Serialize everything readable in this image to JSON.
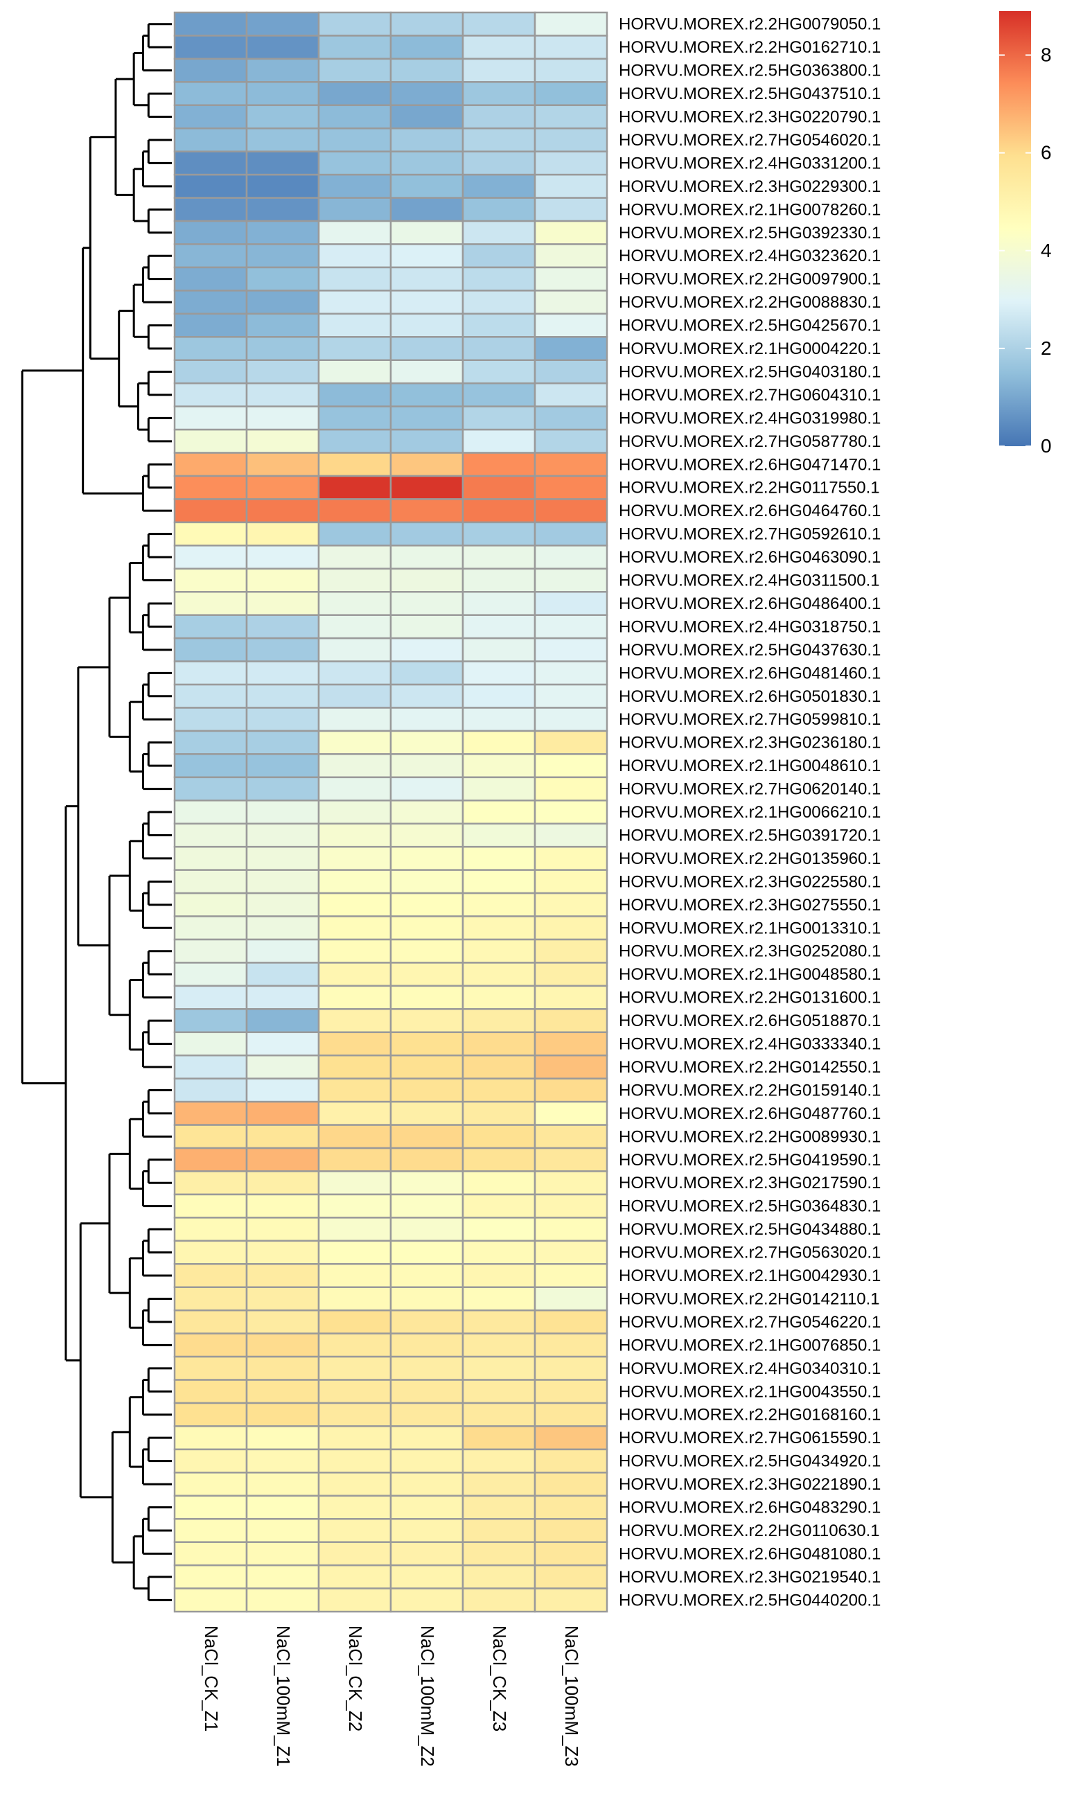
{
  "chart_data": {
    "type": "heatmap",
    "title": "",
    "xlabel": "",
    "ylabel": "",
    "columns": [
      "NaCl_CK_Z1",
      "NaCl_100mM_Z1",
      "NaCl_CK_Z2",
      "NaCl_100mM_Z2",
      "NaCl_CK_Z3",
      "NaCl_100mM_Z3"
    ],
    "rows": [
      "HORVU.MOREX.r2.2HG0079050.1",
      "HORVU.MOREX.r2.2HG0162710.1",
      "HORVU.MOREX.r2.5HG0363800.1",
      "HORVU.MOREX.r2.5HG0437510.1",
      "HORVU.MOREX.r2.3HG0220790.1",
      "HORVU.MOREX.r2.7HG0546020.1",
      "HORVU.MOREX.r2.4HG0331200.1",
      "HORVU.MOREX.r2.3HG0229300.1",
      "HORVU.MOREX.r2.1HG0078260.1",
      "HORVU.MOREX.r2.5HG0392330.1",
      "HORVU.MOREX.r2.4HG0323620.1",
      "HORVU.MOREX.r2.2HG0097900.1",
      "HORVU.MOREX.r2.2HG0088830.1",
      "HORVU.MOREX.r2.5HG0425670.1",
      "HORVU.MOREX.r2.1HG0004220.1",
      "HORVU.MOREX.r2.5HG0403180.1",
      "HORVU.MOREX.r2.7HG0604310.1",
      "HORVU.MOREX.r2.4HG0319980.1",
      "HORVU.MOREX.r2.7HG0587780.1",
      "HORVU.MOREX.r2.6HG0471470.1",
      "HORVU.MOREX.r2.2HG0117550.1",
      "HORVU.MOREX.r2.6HG0464760.1",
      "HORVU.MOREX.r2.7HG0592610.1",
      "HORVU.MOREX.r2.6HG0463090.1",
      "HORVU.MOREX.r2.4HG0311500.1",
      "HORVU.MOREX.r2.6HG0486400.1",
      "HORVU.MOREX.r2.4HG0318750.1",
      "HORVU.MOREX.r2.5HG0437630.1",
      "HORVU.MOREX.r2.6HG0481460.1",
      "HORVU.MOREX.r2.6HG0501830.1",
      "HORVU.MOREX.r2.7HG0599810.1",
      "HORVU.MOREX.r2.3HG0236180.1",
      "HORVU.MOREX.r2.1HG0048610.1",
      "HORVU.MOREX.r2.7HG0620140.1",
      "HORVU.MOREX.r2.1HG0066210.1",
      "HORVU.MOREX.r2.5HG0391720.1",
      "HORVU.MOREX.r2.2HG0135960.1",
      "HORVU.MOREX.r2.3HG0225580.1",
      "HORVU.MOREX.r2.3HG0275550.1",
      "HORVU.MOREX.r2.1HG0013310.1",
      "HORVU.MOREX.r2.3HG0252080.1",
      "HORVU.MOREX.r2.1HG0048580.1",
      "HORVU.MOREX.r2.2HG0131600.1",
      "HORVU.MOREX.r2.6HG0518870.1",
      "HORVU.MOREX.r2.4HG0333340.1",
      "HORVU.MOREX.r2.2HG0142550.1",
      "HORVU.MOREX.r2.2HG0159140.1",
      "HORVU.MOREX.r2.6HG0487760.1",
      "HORVU.MOREX.r2.2HG0089930.1",
      "HORVU.MOREX.r2.5HG0419590.1",
      "HORVU.MOREX.r2.3HG0217590.1",
      "HORVU.MOREX.r2.5HG0364830.1",
      "HORVU.MOREX.r2.5HG0434880.1",
      "HORVU.MOREX.r2.7HG0563020.1",
      "HORVU.MOREX.r2.1HG0042930.1",
      "HORVU.MOREX.r2.2HG0142110.1",
      "HORVU.MOREX.r2.7HG0546220.1",
      "HORVU.MOREX.r2.1HG0076850.1",
      "HORVU.MOREX.r2.4HG0340310.1",
      "HORVU.MOREX.r2.1HG0043550.1",
      "HORVU.MOREX.r2.2HG0168160.1",
      "HORVU.MOREX.r2.7HG0615590.1",
      "HORVU.MOREX.r2.5HG0434920.1",
      "HORVU.MOREX.r2.3HG0221890.1",
      "HORVU.MOREX.r2.6HG0483290.1",
      "HORVU.MOREX.r2.2HG0110630.1",
      "HORVU.MOREX.r2.6HG0481080.1",
      "HORVU.MOREX.r2.3HG0219540.1",
      "HORVU.MOREX.r2.5HG0440200.1"
    ],
    "values": [
      [
        0.8,
        0.9,
        2.0,
        2.0,
        2.2,
        3.2
      ],
      [
        0.6,
        0.6,
        1.7,
        1.4,
        2.6,
        2.6
      ],
      [
        1.0,
        1.3,
        1.9,
        1.9,
        2.6,
        2.5
      ],
      [
        1.4,
        1.4,
        1.0,
        1.1,
        1.7,
        1.5
      ],
      [
        1.2,
        1.6,
        1.4,
        1.0,
        2.0,
        2.1
      ],
      [
        1.4,
        1.6,
        1.6,
        1.8,
        2.1,
        2.1
      ],
      [
        0.5,
        0.5,
        1.6,
        1.7,
        2.0,
        2.4
      ],
      [
        0.4,
        0.4,
        1.2,
        1.5,
        1.2,
        2.6
      ],
      [
        0.6,
        0.6,
        1.3,
        0.9,
        1.6,
        2.4
      ],
      [
        1.1,
        1.2,
        3.2,
        3.4,
        2.6,
        4.1
      ],
      [
        1.3,
        1.3,
        2.8,
        2.9,
        2.0,
        3.7
      ],
      [
        1.1,
        1.5,
        2.5,
        2.6,
        2.3,
        3.4
      ],
      [
        1.1,
        1.1,
        2.8,
        2.8,
        2.6,
        3.5
      ],
      [
        1.1,
        1.4,
        2.7,
        2.7,
        2.3,
        3.1
      ],
      [
        1.7,
        1.7,
        2.1,
        2.0,
        2.0,
        1.2
      ],
      [
        2.0,
        2.2,
        3.4,
        3.2,
        2.3,
        2.0
      ],
      [
        2.6,
        2.6,
        1.4,
        1.5,
        1.6,
        2.6
      ],
      [
        3.1,
        3.1,
        1.6,
        1.6,
        2.1,
        1.8
      ],
      [
        3.8,
        3.9,
        1.8,
        1.8,
        2.9,
        2.1
      ],
      [
        6.9,
        6.5,
        6.1,
        6.4,
        7.4,
        7.3
      ],
      [
        7.4,
        7.3,
        8.8,
        8.8,
        7.7,
        7.5
      ],
      [
        7.7,
        7.7,
        7.7,
        7.6,
        7.7,
        7.7
      ],
      [
        4.7,
        4.9,
        1.7,
        1.8,
        1.9,
        1.8
      ],
      [
        3.0,
        3.0,
        3.5,
        3.4,
        3.4,
        3.3
      ],
      [
        4.2,
        4.2,
        3.6,
        3.6,
        3.4,
        3.4
      ],
      [
        4.0,
        4.0,
        3.4,
        3.4,
        3.2,
        2.8
      ],
      [
        1.9,
        2.0,
        3.3,
        3.4,
        3.1,
        3.1
      ],
      [
        1.7,
        1.8,
        3.2,
        3.0,
        3.2,
        3.0
      ],
      [
        2.7,
        2.7,
        2.6,
        2.3,
        3.0,
        3.1
      ],
      [
        2.5,
        2.5,
        2.4,
        2.6,
        2.9,
        3.1
      ],
      [
        2.3,
        2.3,
        3.2,
        3.1,
        3.1,
        3.1
      ],
      [
        1.9,
        1.9,
        4.2,
        4.2,
        4.6,
        5.4
      ],
      [
        1.6,
        1.6,
        3.6,
        3.7,
        4.1,
        4.4
      ],
      [
        1.9,
        1.9,
        3.3,
        3.1,
        3.8,
        4.6
      ],
      [
        3.4,
        3.4,
        3.7,
        3.9,
        4.4,
        4.4
      ],
      [
        3.6,
        3.6,
        4.0,
        4.0,
        3.8,
        3.6
      ],
      [
        3.7,
        3.7,
        4.2,
        4.3,
        4.4,
        4.7
      ],
      [
        3.7,
        3.7,
        4.3,
        4.3,
        4.4,
        4.7
      ],
      [
        3.8,
        3.7,
        4.5,
        4.5,
        4.6,
        4.8
      ],
      [
        3.6,
        3.6,
        4.6,
        4.6,
        4.8,
        5.0
      ],
      [
        3.5,
        3.2,
        4.6,
        4.6,
        4.8,
        5.2
      ],
      [
        3.3,
        2.5,
        4.9,
        4.9,
        4.9,
        5.2
      ],
      [
        2.8,
        2.8,
        4.6,
        4.6,
        4.7,
        4.9
      ],
      [
        1.7,
        1.3,
        5.1,
        5.1,
        5.3,
        5.6
      ],
      [
        3.4,
        3.0,
        6.0,
        5.9,
        6.0,
        6.3
      ],
      [
        2.7,
        3.5,
        5.9,
        5.9,
        6.0,
        6.5
      ],
      [
        2.6,
        2.9,
        5.7,
        5.8,
        5.8,
        6.0
      ],
      [
        6.7,
        6.8,
        5.1,
        5.2,
        5.4,
        4.5
      ],
      [
        5.7,
        5.7,
        6.1,
        6.1,
        5.9,
        5.6
      ],
      [
        6.8,
        6.7,
        6.0,
        6.0,
        5.8,
        5.6
      ],
      [
        5.2,
        5.2,
        4.0,
        4.2,
        4.6,
        4.9
      ],
      [
        4.6,
        4.6,
        4.3,
        4.3,
        4.8,
        4.9
      ],
      [
        4.7,
        4.7,
        4.1,
        4.1,
        4.4,
        4.6
      ],
      [
        4.9,
        4.9,
        4.5,
        4.5,
        4.7,
        4.8
      ],
      [
        5.5,
        5.4,
        4.7,
        4.7,
        4.9,
        4.7
      ],
      [
        5.4,
        5.3,
        4.7,
        4.7,
        4.6,
        3.8
      ],
      [
        5.6,
        5.4,
        5.9,
        5.6,
        5.5,
        5.8
      ],
      [
        6.0,
        6.0,
        5.5,
        5.5,
        5.4,
        5.5
      ],
      [
        5.6,
        5.6,
        5.3,
        5.3,
        5.2,
        5.3
      ],
      [
        5.8,
        5.7,
        5.5,
        5.5,
        5.4,
        5.5
      ],
      [
        5.9,
        5.9,
        5.5,
        5.5,
        5.5,
        5.6
      ],
      [
        4.7,
        4.6,
        5.0,
        5.0,
        6.0,
        6.4
      ],
      [
        4.9,
        4.8,
        5.0,
        5.0,
        5.1,
        5.5
      ],
      [
        4.7,
        4.7,
        5.0,
        5.0,
        5.3,
        5.6
      ],
      [
        4.5,
        4.5,
        4.9,
        4.9,
        5.3,
        5.5
      ],
      [
        4.6,
        4.6,
        5.0,
        5.0,
        5.4,
        5.6
      ],
      [
        4.7,
        4.7,
        5.1,
        5.1,
        5.4,
        5.6
      ],
      [
        4.6,
        4.6,
        5.0,
        5.0,
        5.2,
        5.5
      ],
      [
        4.6,
        4.6,
        5.0,
        5.0,
        5.2,
        5.2
      ]
    ],
    "colorbar": {
      "ticks": [
        "0",
        "2",
        "4",
        "6",
        "8"
      ],
      "min": 0,
      "max": 8.9,
      "colors": [
        "#4575b4",
        "#91bfdb",
        "#e0f3f8",
        "#ffffbf",
        "#fee090",
        "#fc8d59",
        "#d73027"
      ]
    },
    "cell_border_color": "#9a9a9a",
    "dendrogram": {
      "row_leaf_order": [
        0,
        1,
        2,
        3,
        4,
        5,
        6,
        7,
        8,
        9,
        10,
        11,
        12,
        13,
        14,
        15,
        16,
        17,
        18,
        19,
        20,
        21,
        22,
        23,
        24,
        25,
        26,
        27,
        28,
        29,
        30,
        31,
        32,
        33,
        34,
        35,
        36,
        37,
        38,
        39,
        40,
        41,
        42,
        43,
        44,
        45,
        46,
        47,
        48,
        49,
        50,
        51,
        52,
        53,
        54,
        55,
        56,
        57,
        58,
        59,
        60,
        61,
        62,
        63,
        64,
        65,
        66,
        67,
        68
      ]
    }
  }
}
